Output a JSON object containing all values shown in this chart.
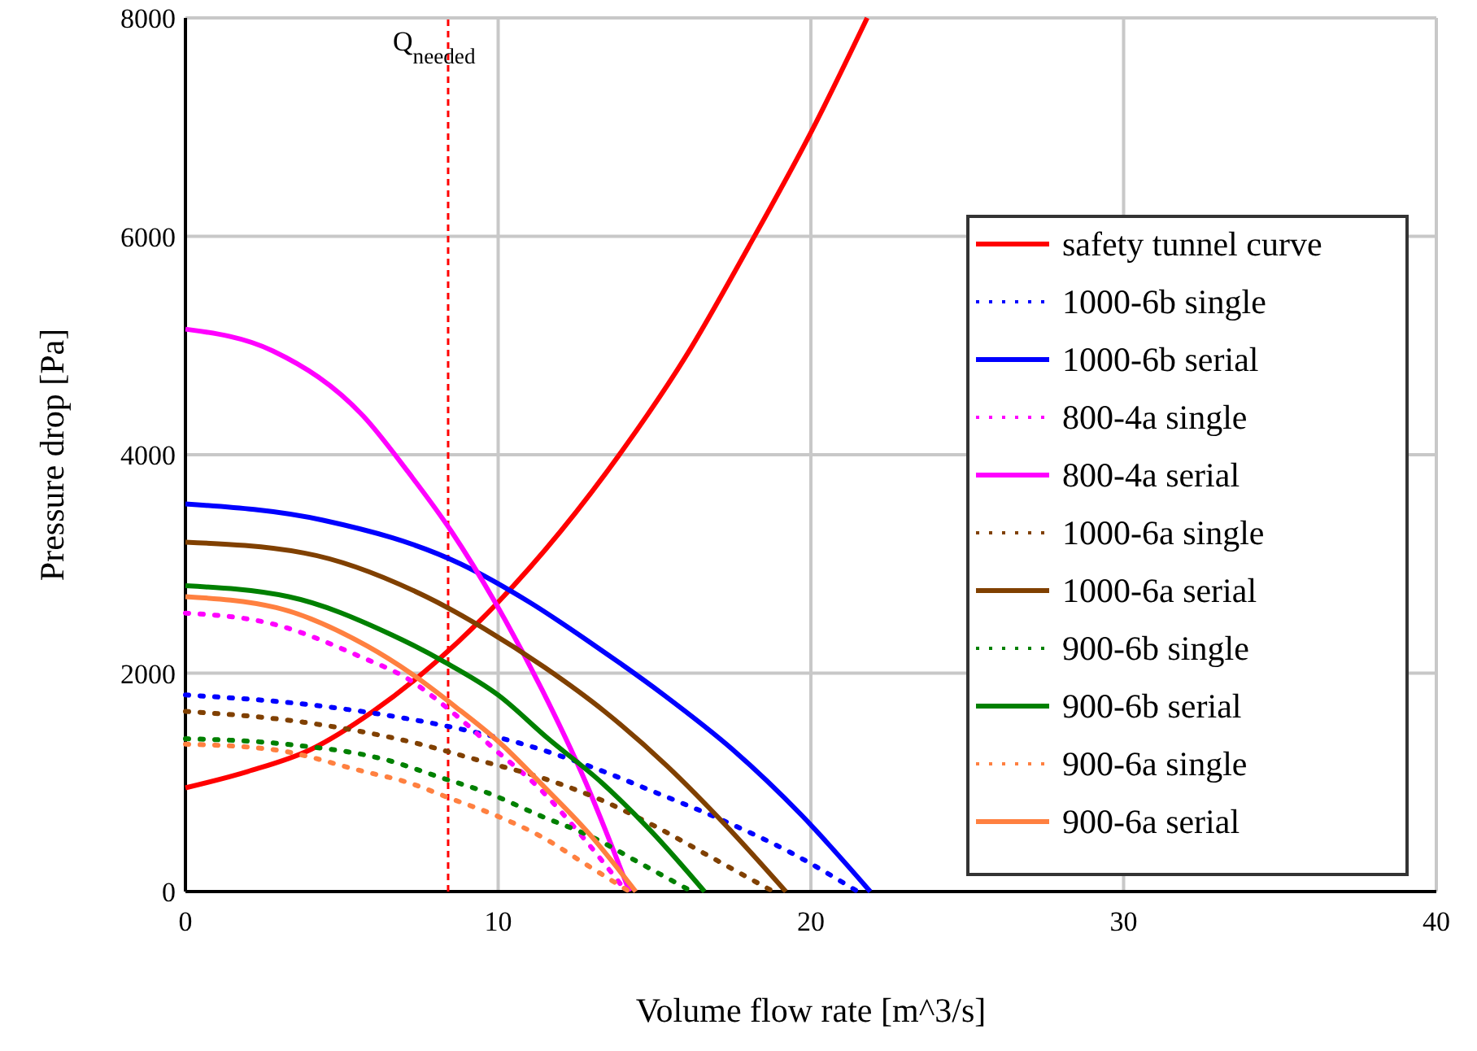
{
  "chart_data": {
    "type": "line",
    "xlabel": "Volume flow rate [m^3/s]",
    "ylabel": "Pressure drop [Pa]",
    "xlim": [
      0,
      40
    ],
    "ylim": [
      0,
      8000
    ],
    "xticks": [
      0,
      10,
      20,
      30,
      40
    ],
    "yticks": [
      0,
      2000,
      4000,
      6000,
      8000
    ],
    "grid": true,
    "legend": "right",
    "ref_lines": [
      {
        "axis": "x",
        "value": 8.4,
        "label": "Q$_{needed}$",
        "color": "#ff0000",
        "line_style": "dashed"
      }
    ],
    "series": [
      {
        "name": "safety tunnel curve",
        "color": "#ff0000",
        "line_style": "solid",
        "x": [
          0,
          2,
          4,
          6,
          8,
          10,
          12,
          14,
          16,
          18,
          20,
          21.8
        ],
        "values": [
          950,
          1100,
          1300,
          1650,
          2100,
          2650,
          3300,
          4050,
          4900,
          5900,
          6950,
          8000
        ]
      },
      {
        "name": "1000-6b single",
        "color": "#0000ff",
        "line_style": "dotted",
        "x": [
          0,
          4.3,
          8.6,
          10.8,
          12.9,
          15.1,
          17.2,
          19.4,
          21.5
        ],
        "values": [
          1800,
          1700,
          1500,
          1350,
          1150,
          900,
          650,
          350,
          0
        ]
      },
      {
        "name": "1000-6b serial",
        "color": "#0000ff",
        "line_style": "solid",
        "x": [
          0,
          4.4,
          8.8,
          11,
          13.1,
          15.3,
          17.5,
          19.7,
          21.9
        ],
        "values": [
          3550,
          3400,
          3000,
          2650,
          2250,
          1800,
          1300,
          700,
          0
        ]
      },
      {
        "name": "800-4a single",
        "color": "#ff00ff",
        "line_style": "dotted",
        "x": [
          0,
          2.8,
          5.6,
          7.1,
          8.5,
          9.9,
          11.3,
          12.7,
          14.1
        ],
        "values": [
          2550,
          2450,
          2150,
          1950,
          1650,
          1300,
          950,
          500,
          0
        ]
      },
      {
        "name": "800-4a serial",
        "color": "#ff00ff",
        "line_style": "solid",
        "x": [
          0,
          2.8,
          5.7,
          7.1,
          8.5,
          9.9,
          11.4,
          12.8,
          14.2
        ],
        "values": [
          5150,
          4950,
          4350,
          3850,
          3300,
          2650,
          1850,
          1000,
          0
        ]
      },
      {
        "name": "1000-6a single",
        "color": "#804000",
        "line_style": "dotted",
        "x": [
          0,
          3.8,
          7.5,
          9.4,
          11.3,
          13.2,
          15,
          16.9,
          18.8
        ],
        "values": [
          1650,
          1550,
          1350,
          1200,
          1050,
          850,
          600,
          300,
          0
        ]
      },
      {
        "name": "1000-6a serial",
        "color": "#804000",
        "line_style": "solid",
        "x": [
          0,
          3.8,
          7.7,
          9.6,
          11.5,
          13.4,
          15.4,
          17.3,
          19.2
        ],
        "values": [
          3200,
          3100,
          2700,
          2400,
          2050,
          1650,
          1150,
          600,
          0
        ]
      },
      {
        "name": "900-6b single",
        "color": "#008000",
        "line_style": "dotted",
        "x": [
          0,
          3.2,
          6.5,
          8.1,
          9.7,
          11.3,
          13,
          14.6,
          16.2
        ],
        "values": [
          1400,
          1350,
          1200,
          1050,
          900,
          700,
          500,
          250,
          0
        ]
      },
      {
        "name": "900-6b serial",
        "color": "#008000",
        "line_style": "solid",
        "x": [
          0,
          3.3,
          6.6,
          8.3,
          10,
          11.6,
          13.3,
          14.9,
          16.6
        ],
        "values": [
          2800,
          2700,
          2350,
          2100,
          1800,
          1400,
          1000,
          550,
          0
        ]
      },
      {
        "name": "900-6a single",
        "color": "#ff8040",
        "line_style": "dotted",
        "x": [
          0,
          2.8,
          5.7,
          7.1,
          8.5,
          9.9,
          11.4,
          12.8,
          14.2
        ],
        "values": [
          1350,
          1300,
          1100,
          1000,
          850,
          700,
          500,
          250,
          0
        ]
      },
      {
        "name": "900-6a serial",
        "color": "#ff8040",
        "line_style": "solid",
        "x": [
          0,
          2.9,
          5.8,
          7.2,
          8.6,
          10.1,
          11.5,
          13,
          14.4
        ],
        "values": [
          2700,
          2600,
          2250,
          2000,
          1700,
          1350,
          950,
          500,
          0
        ]
      }
    ]
  }
}
